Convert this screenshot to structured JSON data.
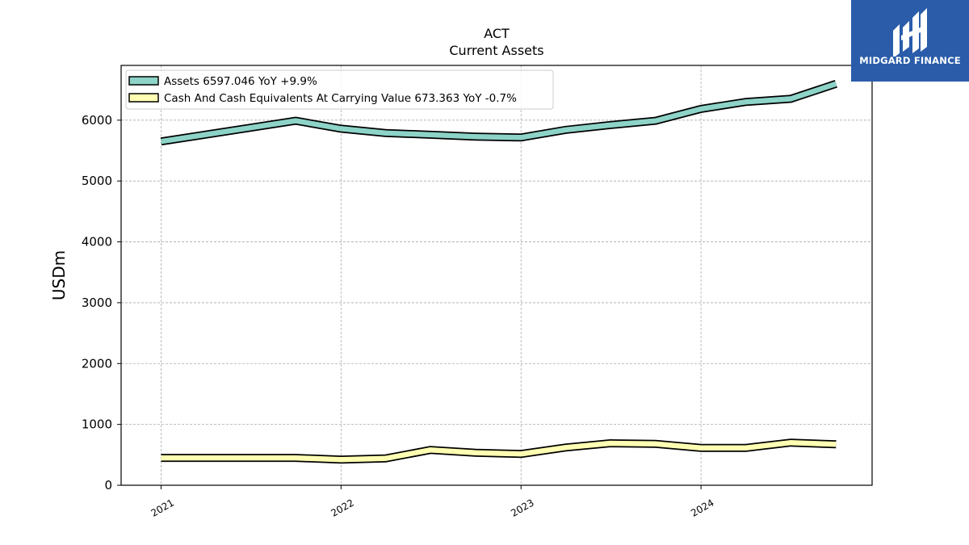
{
  "chart_data": {
    "type": "line",
    "title": "ACT",
    "subtitle": "Current  Assets",
    "ylabel": "USDm",
    "xlabel": "",
    "ylim": [
      0,
      6900
    ],
    "xlim": [
      "2020-10-12",
      "2024-12-13"
    ],
    "yticks": [
      0,
      1000,
      2000,
      3000,
      4000,
      5000,
      6000
    ],
    "xticks": [
      "2021",
      "2022",
      "2023",
      "2024"
    ],
    "grid": true,
    "legend_position": "upper-left",
    "series": [
      {
        "name": "Assets",
        "legend_label": "Assets  6597.046 YoY +9.9%",
        "color": "#8dd3c7",
        "points": [
          [
            "2021-01-01",
            5650
          ],
          [
            "2021-10-01",
            5990
          ],
          [
            "2022-01-01",
            5860
          ],
          [
            "2022-04-01",
            5790
          ],
          [
            "2022-07-01",
            5760
          ],
          [
            "2022-10-01",
            5730
          ],
          [
            "2023-01-01",
            5715
          ],
          [
            "2023-04-01",
            5840
          ],
          [
            "2023-07-01",
            5920
          ],
          [
            "2023-10-01",
            5990
          ],
          [
            "2024-01-01",
            6185
          ],
          [
            "2024-04-01",
            6300
          ],
          [
            "2024-07-01",
            6350
          ],
          [
            "2024-10-01",
            6597
          ]
        ]
      },
      {
        "name": "Cash And Cash Equivalents At Carrying Value",
        "legend_label": "Cash And Cash Equivalents At Carrying Value  673.363 YoY -0.7%",
        "color": "#ffffb3",
        "points": [
          [
            "2021-01-01",
            450
          ],
          [
            "2021-10-01",
            450
          ],
          [
            "2022-01-01",
            420
          ],
          [
            "2022-04-01",
            440
          ],
          [
            "2022-07-01",
            580
          ],
          [
            "2022-10-01",
            535
          ],
          [
            "2023-01-01",
            515
          ],
          [
            "2023-04-01",
            620
          ],
          [
            "2023-07-01",
            690
          ],
          [
            "2023-10-01",
            680
          ],
          [
            "2024-01-01",
            615
          ],
          [
            "2024-04-01",
            615
          ],
          [
            "2024-07-01",
            700
          ],
          [
            "2024-10-01",
            673
          ]
        ]
      }
    ]
  },
  "logo": {
    "text": "MIDGARD FINANCE",
    "background": "#2a5caa"
  }
}
